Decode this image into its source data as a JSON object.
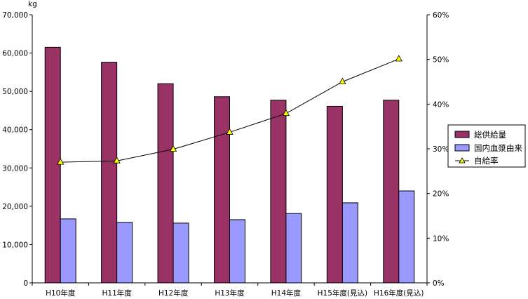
{
  "chart_data": {
    "type": "bar",
    "title": "",
    "xlabel": "",
    "ylabel": "kg",
    "y2label": "",
    "categories": [
      "H10年度",
      "H11年度",
      "H12年度",
      "H13年度",
      "H14年度",
      "H15年度(見込)",
      "H16年度(見込)"
    ],
    "ylim": [
      0,
      70000
    ],
    "y_ticks": [
      "0",
      "10,000",
      "20,000",
      "30,000",
      "40,000",
      "50,000",
      "60,000",
      "70,000"
    ],
    "y2lim": [
      0,
      60
    ],
    "y2_ticks": [
      "0%",
      "10%",
      "20%",
      "30%",
      "40%",
      "50%",
      "60%"
    ],
    "grid": false,
    "legend_position": "right",
    "series": [
      {
        "name": "総供給量",
        "type": "bar",
        "axis": "left",
        "color": "#993366",
        "values": [
          61500,
          57600,
          52000,
          48600,
          47700,
          46100,
          47700
        ]
      },
      {
        "name": "国内血漿由来",
        "type": "bar",
        "axis": "left",
        "color": "#9999ff",
        "values": [
          16700,
          15800,
          15600,
          16500,
          18100,
          20900,
          24000
        ]
      },
      {
        "name": "自給率",
        "type": "line",
        "axis": "right",
        "color": "#000000",
        "marker_color": "#ffff00",
        "values": [
          27.0,
          27.3,
          29.9,
          33.7,
          37.9,
          45.0,
          50.1
        ]
      }
    ]
  }
}
